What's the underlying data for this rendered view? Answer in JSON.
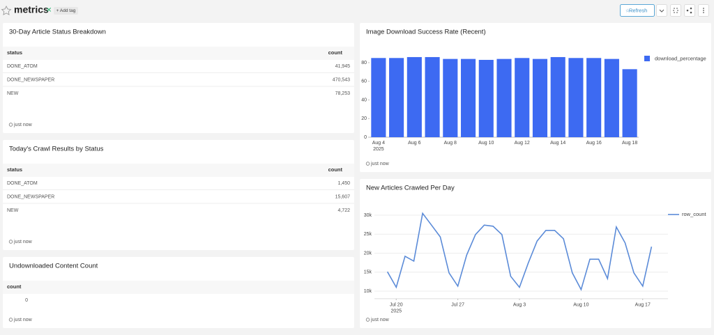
{
  "header": {
    "title": "metrics",
    "tag_button": "+ Add tag",
    "refresh_button": "Refresh"
  },
  "panels": [
    {
      "title": "30-Day Article Status Breakdown",
      "columns": [
        "status",
        "count"
      ],
      "rows": [
        [
          "DONE_ATOM",
          "41,945"
        ],
        [
          "DONE_NEWSPAPER",
          "470,543"
        ],
        [
          "NEW",
          "78,253"
        ]
      ],
      "footer": "just now"
    },
    {
      "title": "Today's Crawl Results by Status",
      "columns": [
        "status",
        "count"
      ],
      "rows": [
        [
          "DONE_ATOM",
          "1,450"
        ],
        [
          "DONE_NEWSPAPER",
          "15,607"
        ],
        [
          "NEW",
          "4,722"
        ]
      ],
      "footer": "just now"
    },
    {
      "title": "Undownloaded Content Count",
      "columns": [
        "count"
      ],
      "rows": [
        [
          "0"
        ]
      ],
      "footer": "just now"
    },
    {
      "title": "Image Download Success Rate (Recent)",
      "footer": "just now",
      "chart": {
        "type": "bar",
        "categories": [
          "Aug 4",
          null,
          "Aug 6",
          null,
          "Aug 8",
          null,
          "Aug 10",
          null,
          "Aug 12",
          null,
          "Aug 14",
          null,
          "Aug 16",
          null,
          "Aug 18"
        ],
        "category_year": "2025",
        "series": [
          {
            "name": "download_percentage",
            "color": "#3d6af2",
            "values": [
              85,
              85,
              86,
              86,
              84,
              84,
              83,
              84,
              85,
              84,
              86,
              85,
              85,
              84,
              73
            ]
          }
        ],
        "ylim": [
          0,
          90
        ],
        "yticks": [
          0,
          20,
          40,
          60,
          80
        ],
        "grid": false,
        "legend": "right"
      }
    },
    {
      "title": "New Articles Crawled Per Day",
      "footer": "just now",
      "chart": {
        "type": "line",
        "x": [
          "2025-07-19",
          "2025-07-20",
          "2025-07-21",
          "2025-07-22",
          "2025-07-23",
          "2025-07-24",
          "2025-07-25",
          "2025-07-26",
          "2025-07-27",
          "2025-07-28",
          "2025-07-29",
          "2025-07-30",
          "2025-07-31",
          "2025-08-01",
          "2025-08-02",
          "2025-08-03",
          "2025-08-04",
          "2025-08-05",
          "2025-08-06",
          "2025-08-07",
          "2025-08-08",
          "2025-08-09",
          "2025-08-10",
          "2025-08-11",
          "2025-08-12",
          "2025-08-13",
          "2025-08-14",
          "2025-08-15",
          "2025-08-16",
          "2025-08-17",
          "2025-08-18"
        ],
        "series": [
          {
            "name": "row_count",
            "color": "#5b8bd8",
            "values": [
              15100,
              11000,
              19200,
              17900,
              30500,
              27400,
              24300,
              14800,
              11300,
              19500,
              24900,
              27400,
              27100,
              24900,
              13900,
              11000,
              17400,
              23200,
              26000,
              26000,
              23800,
              14800,
              10400,
              18400,
              18400,
              13300,
              26900,
              22700,
              14800,
              11300,
              21700
            ]
          }
        ],
        "xlim": [
          "2025-07-18",
          "2025-08-19"
        ],
        "xticks": [
          {
            "value": "2025-07-20",
            "label": "Jul 20",
            "year": "2025"
          },
          {
            "value": "2025-07-27",
            "label": "Jul 27"
          },
          {
            "value": "2025-08-03",
            "label": "Aug 3"
          },
          {
            "value": "2025-08-10",
            "label": "Aug 10"
          },
          {
            "value": "2025-08-17",
            "label": "Aug 17"
          }
        ],
        "ylim": [
          8000,
          32000
        ],
        "yticks": [
          {
            "value": 10000,
            "label": "10k"
          },
          {
            "value": 15000,
            "label": "15k"
          },
          {
            "value": 20000,
            "label": "20k"
          },
          {
            "value": 25000,
            "label": "25k"
          },
          {
            "value": 30000,
            "label": "30k"
          }
        ],
        "grid": true,
        "legend": "right"
      }
    }
  ]
}
